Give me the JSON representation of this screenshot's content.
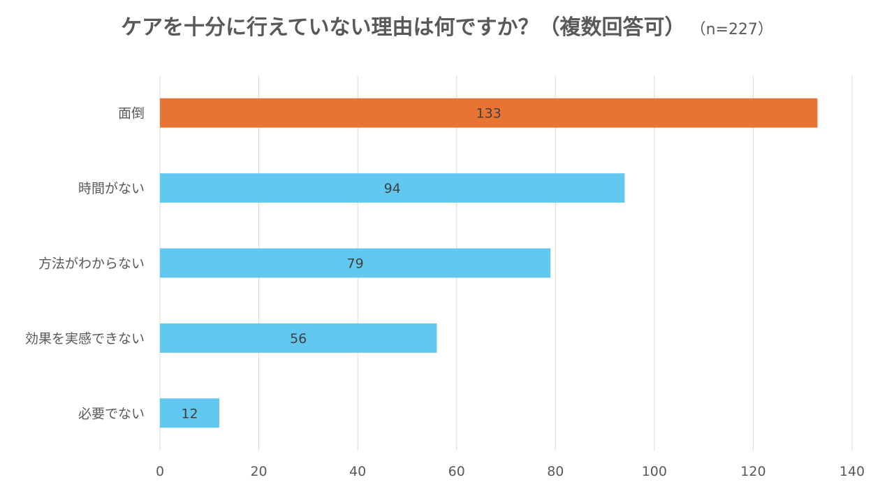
{
  "chart_data": {
    "type": "bar",
    "orientation": "horizontal",
    "title": "ケアを十分に行えていない理由は何ですか？（複数回答可）",
    "subtitle": "（n=227）",
    "categories": [
      "面倒",
      "時間がない",
      "方法がわからない",
      "効果を実感できない",
      "必要でない"
    ],
    "values": [
      133,
      94,
      79,
      56,
      12
    ],
    "bar_colors": [
      "#E87434",
      "#63C8EF",
      "#63C8EF",
      "#63C8EF",
      "#63C8EF"
    ],
    "xticks": [
      0,
      20,
      40,
      60,
      80,
      100,
      120,
      140
    ],
    "xlim": [
      0,
      140
    ],
    "grid": true,
    "legend": "none"
  }
}
